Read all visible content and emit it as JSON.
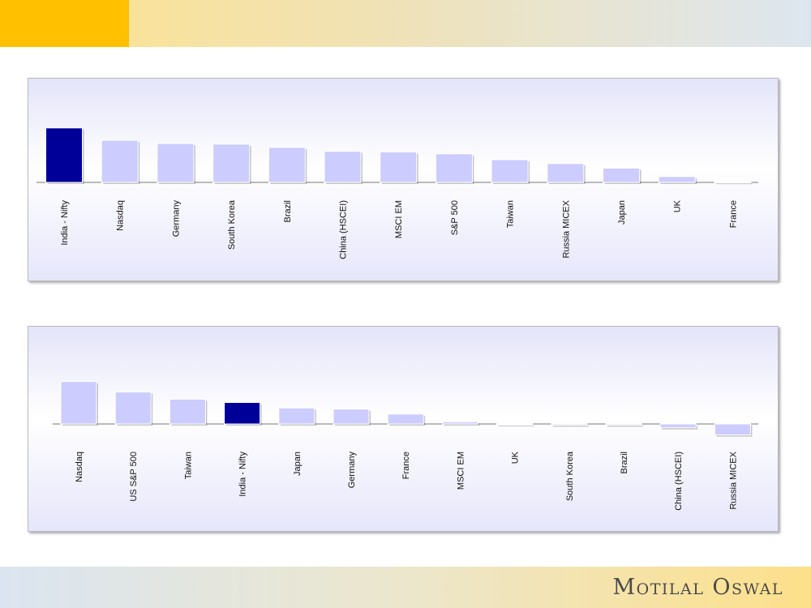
{
  "brand": {
    "name": "Motilal Oswal"
  },
  "colors": {
    "highlight": "#000099",
    "bar": "#ccccff",
    "axis": "#777777"
  },
  "chart_data": [
    {
      "type": "bar",
      "highlight": "India - Nifty",
      "categories": [
        "India - Nifty",
        "Nasdaq",
        "Germany",
        "South Korea",
        "Brazil",
        "China (HSCEI)",
        "MSCI EM",
        "S&P 500",
        "Taiwan",
        "Russia MICEX",
        "Japan",
        "UK",
        "France"
      ],
      "values": [
        84,
        65,
        60,
        59,
        54,
        48,
        47,
        44,
        35,
        29,
        22,
        9,
        1
      ],
      "ylim": [
        0,
        100
      ],
      "grid": false
    },
    {
      "type": "bar",
      "highlight": "India - Nifty",
      "categories": [
        "Nasdaq",
        "US S&P 500",
        "Taiwan",
        "India - Nifty",
        "Japan",
        "Germany",
        "France",
        "MSCI EM",
        "UK",
        "South Korea",
        "Brazil",
        "China (HSCEI)",
        "Russia MICEX"
      ],
      "values": [
        77,
        58,
        45,
        39,
        29,
        27,
        18,
        4,
        -1,
        -2,
        -2,
        -7,
        -20
      ],
      "ylim": [
        -40,
        100
      ],
      "grid": false
    }
  ]
}
